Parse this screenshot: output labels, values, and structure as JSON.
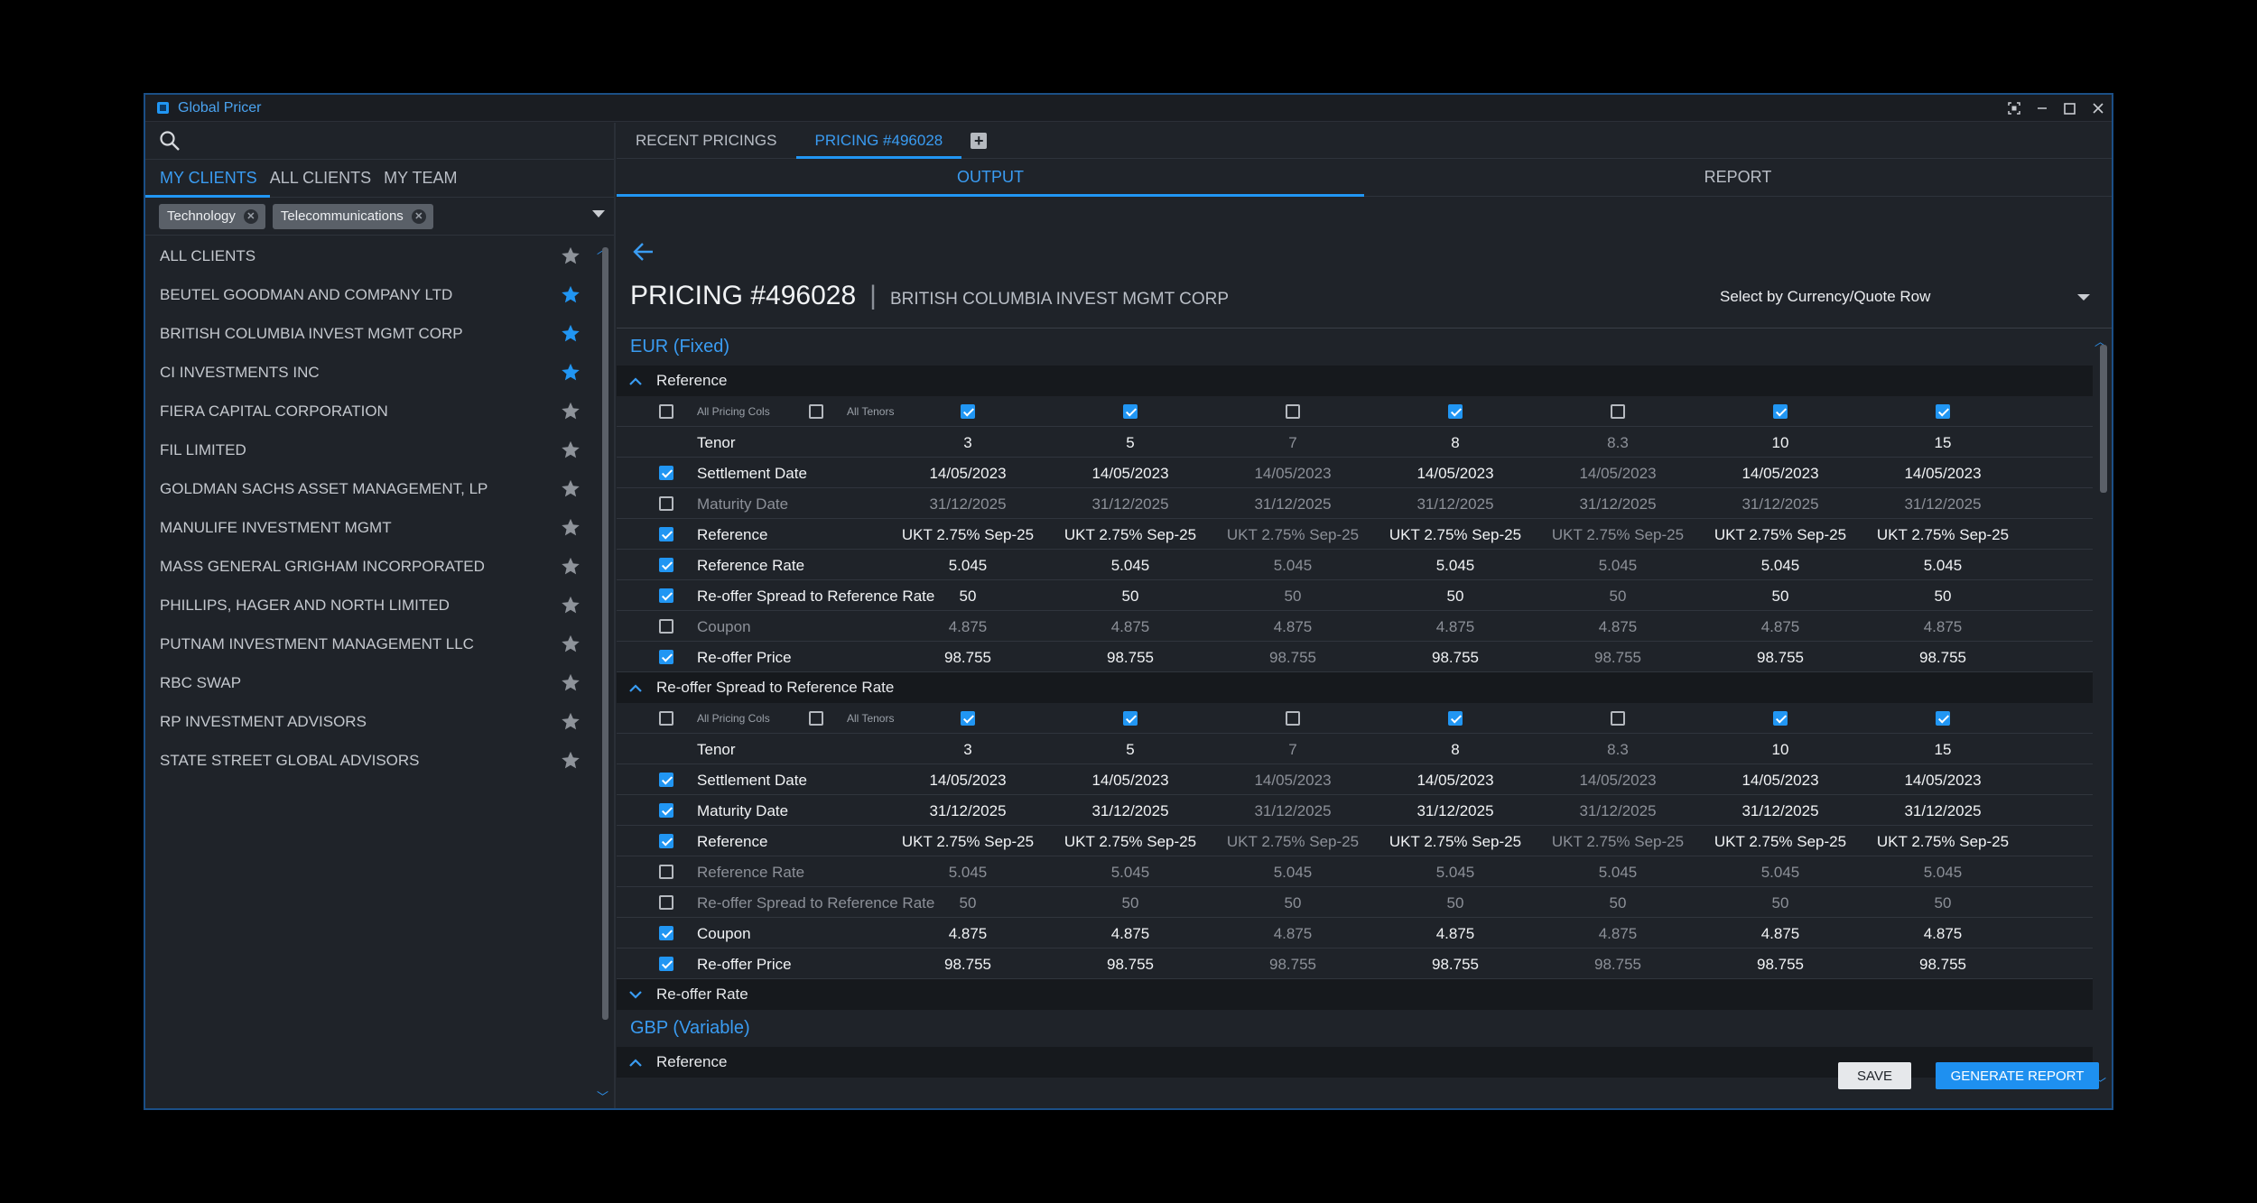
{
  "app": {
    "title": "Global Pricer"
  },
  "left": {
    "tabs": [
      "MY CLIENTS",
      "ALL CLIENTS",
      "MY TEAM"
    ],
    "filters": [
      "Technology",
      "Telecommunications"
    ],
    "clients": [
      {
        "name": "ALL CLIENTS",
        "favorite": false
      },
      {
        "name": "BEUTEL GOODMAN AND COMPANY LTD",
        "favorite": true
      },
      {
        "name": "BRITISH COLUMBIA INVEST MGMT CORP",
        "favorite": true
      },
      {
        "name": "CI INVESTMENTS INC",
        "favorite": true
      },
      {
        "name": "FIERA CAPITAL CORPORATION",
        "favorite": false
      },
      {
        "name": "FIL LIMITED",
        "favorite": false
      },
      {
        "name": "GOLDMAN SACHS ASSET MANAGEMENT, LP",
        "favorite": false
      },
      {
        "name": "MANULIFE INVESTMENT MGMT",
        "favorite": false
      },
      {
        "name": "MASS GENERAL GRIGHAM INCORPORATED",
        "favorite": false
      },
      {
        "name": "PHILLIPS, HAGER AND NORTH LIMITED",
        "favorite": false
      },
      {
        "name": "PUTNAM INVESTMENT MANAGEMENT LLC",
        "favorite": false
      },
      {
        "name": "RBC SWAP",
        "favorite": false
      },
      {
        "name": "RP INVESTMENT ADVISORS",
        "favorite": false
      },
      {
        "name": "STATE STREET GLOBAL ADVISORS",
        "favorite": false
      }
    ]
  },
  "right": {
    "tabs": [
      "RECENT PRICINGS",
      "PRICING #496028"
    ],
    "output_tabs": [
      "OUTPUT",
      "REPORT"
    ],
    "pricing_title": "PRICING #496028",
    "client_name": "BRITISH COLUMBIA INVEST MGMT CORP",
    "quote_select": "Select by Currency/Quote Row",
    "controls": {
      "all_pricing_cols": "All Pricing Cols",
      "all_tenors": "All Tenors"
    },
    "column_enabled": [
      true,
      true,
      false,
      true,
      false,
      true,
      true
    ],
    "tenors": [
      "3",
      "5",
      "7",
      "8",
      "8.3",
      "10",
      "15"
    ],
    "sections": [
      {
        "title": "EUR (Fixed)",
        "groups": [
          {
            "title": "Reference",
            "expanded": true,
            "rows": [
              {
                "label": "Settlement Date",
                "checked": true,
                "value": "14/05/2023"
              },
              {
                "label": "Maturity Date",
                "checked": false,
                "value": "31/12/2025"
              },
              {
                "label": "Reference",
                "checked": true,
                "value": "UKT 2.75% Sep-25"
              },
              {
                "label": "Reference Rate",
                "checked": true,
                "value": "5.045"
              },
              {
                "label": "Re-offer Spread to Reference Rate",
                "checked": true,
                "value": "50"
              },
              {
                "label": "Coupon",
                "checked": false,
                "value": "4.875"
              },
              {
                "label": "Re-offer Price",
                "checked": true,
                "value": "98.755"
              }
            ]
          },
          {
            "title": "Re-offer Spread to Reference Rate",
            "expanded": true,
            "rows": [
              {
                "label": "Settlement Date",
                "checked": true,
                "value": "14/05/2023"
              },
              {
                "label": "Maturity Date",
                "checked": true,
                "value": "31/12/2025"
              },
              {
                "label": "Reference",
                "checked": true,
                "value": "UKT 2.75% Sep-25"
              },
              {
                "label": "Reference Rate",
                "checked": false,
                "value": "5.045"
              },
              {
                "label": "Re-offer Spread to Reference Rate",
                "checked": false,
                "value": "50"
              },
              {
                "label": "Coupon",
                "checked": true,
                "value": "4.875"
              },
              {
                "label": "Re-offer Price",
                "checked": true,
                "value": "98.755"
              }
            ]
          },
          {
            "title": "Re-offer Rate",
            "expanded": false,
            "rows": []
          }
        ]
      },
      {
        "title": "GBP (Variable)",
        "groups": [
          {
            "title": "Reference",
            "expanded": true,
            "rows": []
          }
        ]
      }
    ],
    "tenor_label": "Tenor",
    "buttons": {
      "save": "SAVE",
      "generate": "GENERATE REPORT"
    }
  },
  "colors": {
    "accent": "#2196f3",
    "bg": "#1f2329",
    "star_off": "#8e939a"
  }
}
